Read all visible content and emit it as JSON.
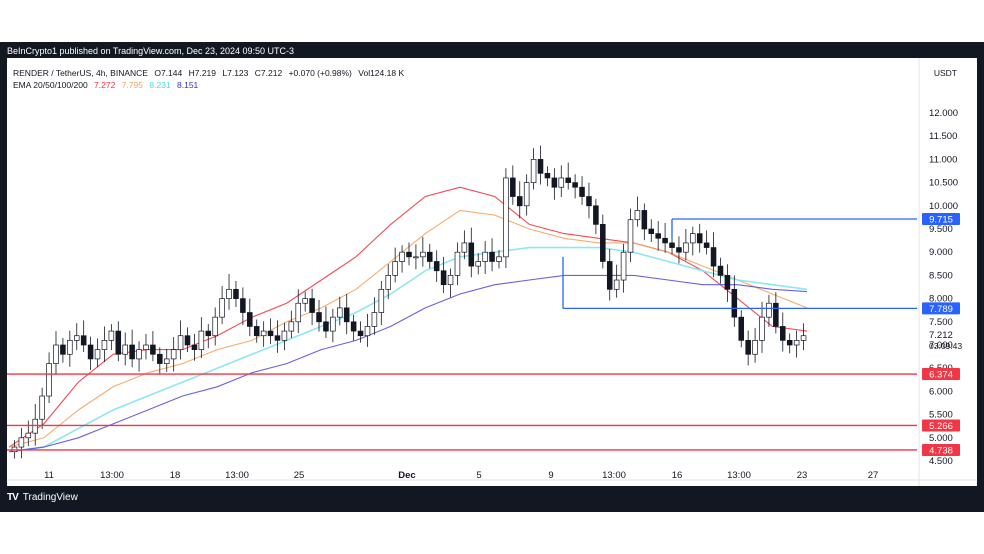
{
  "header": {
    "published": "BeInCrypto1 published on TradingView.com, Dec 23, 2024 09:50 UTC-3"
  },
  "legend": {
    "symbol": "RENDER / TetherUS, 4h, BINANCE",
    "open": "O7.144",
    "high": "H7.219",
    "low": "L7.123",
    "close": "C7.212",
    "change": "+0.070 (+0.98%)",
    "volume": "Vol124.18 K",
    "ema_label": "EMA 20/50/100/200",
    "ema": [
      "7.272",
      "7.795",
      "8.231",
      "8.151"
    ]
  },
  "currency": "USDT",
  "footer": {
    "brand": "TradingView"
  },
  "colors": {
    "ema20": "#f23645",
    "ema50": "#f7a35c",
    "ema100": "#7fe6f0",
    "ema200": "#5b4fd6",
    "support": "#f23645",
    "resistance": "#2962ff",
    "candle": "#131722"
  },
  "chart_data": {
    "type": "candlestick",
    "x_ticks": [
      "11",
      "13:00",
      "18",
      "13:00",
      "25",
      "Dec",
      "5",
      "9",
      "13:00",
      "16",
      "13:00",
      "23",
      "27"
    ],
    "y_ticks": [
      "12.000",
      "11.500",
      "11.000",
      "10.500",
      "10.000",
      "9.500",
      "9.000",
      "8.500",
      "8.000",
      "7.500",
      "7.000",
      "6.500",
      "6.000",
      "5.500",
      "5.000",
      "4.500"
    ],
    "ylim": [
      4.5,
      12.0
    ],
    "price_closes": [
      4.8,
      5.0,
      5.1,
      5.4,
      5.9,
      6.6,
      7.0,
      6.8,
      7.1,
      7.2,
      7.0,
      6.7,
      6.9,
      7.1,
      7.3,
      6.8,
      7.0,
      6.7,
      6.9,
      7.0,
      6.8,
      6.6,
      6.7,
      6.9,
      7.2,
      7.0,
      6.9,
      7.3,
      7.2,
      7.6,
      8.0,
      8.2,
      8.0,
      7.7,
      7.4,
      7.2,
      7.3,
      7.2,
      7.1,
      7.3,
      7.5,
      7.9,
      8.0,
      7.7,
      7.5,
      7.3,
      7.6,
      7.8,
      7.5,
      7.3,
      7.2,
      7.4,
      7.7,
      8.2,
      8.5,
      8.8,
      9.0,
      8.9,
      8.9,
      9.0,
      8.8,
      8.6,
      8.3,
      8.5,
      9.0,
      9.2,
      8.7,
      8.8,
      9.0,
      8.8,
      8.9,
      10.6,
      10.2,
      10.0,
      10.5,
      11.0,
      10.7,
      10.6,
      10.4,
      10.6,
      10.5,
      10.4,
      10.2,
      10.0,
      9.6,
      8.8,
      8.2,
      8.4,
      9.0,
      9.7,
      9.9,
      9.5,
      9.4,
      9.3,
      9.2,
      9.1,
      9.0,
      9.2,
      9.4,
      9.2,
      9.1,
      8.7,
      8.5,
      8.2,
      7.6,
      7.1,
      6.8,
      7.1,
      7.6,
      7.9,
      7.4,
      7.1,
      7.0,
      7.1,
      7.2
    ],
    "ema_lines": [
      {
        "name": "EMA 20",
        "values": [
          4.8,
          5.3,
          6.2,
          6.8,
          6.9,
          6.9,
          7.2,
          7.6,
          7.9,
          8.4,
          8.9,
          9.6,
          10.2,
          10.4,
          10.2,
          9.6,
          9.4,
          9.3,
          9.2,
          9.0,
          8.6,
          8.0,
          7.4,
          7.3
        ]
      },
      {
        "name": "EMA 50",
        "values": [
          4.8,
          5.0,
          5.6,
          6.1,
          6.4,
          6.6,
          6.9,
          7.1,
          7.5,
          7.8,
          8.2,
          8.8,
          9.4,
          9.9,
          9.8,
          9.5,
          9.3,
          9.2,
          9.2,
          9.0,
          8.7,
          8.4,
          8.1,
          7.8
        ]
      },
      {
        "name": "EMA 100",
        "values": [
          4.7,
          4.8,
          5.2,
          5.6,
          5.9,
          6.2,
          6.5,
          6.8,
          7.1,
          7.4,
          7.7,
          8.1,
          8.6,
          8.9,
          9.0,
          9.1,
          9.1,
          9.1,
          9.0,
          8.8,
          8.6,
          8.4,
          8.3,
          8.2
        ]
      },
      {
        "name": "EMA 200",
        "values": [
          4.7,
          4.8,
          5.0,
          5.3,
          5.6,
          5.9,
          6.1,
          6.4,
          6.6,
          6.9,
          7.1,
          7.4,
          7.8,
          8.1,
          8.3,
          8.4,
          8.5,
          8.5,
          8.5,
          8.4,
          8.3,
          8.3,
          8.2,
          8.15
        ]
      }
    ],
    "horizontal_levels": [
      {
        "label": "9.715",
        "value": 9.715,
        "kind": "resistance"
      },
      {
        "label": "7.789",
        "value": 7.789,
        "kind": "resistance"
      },
      {
        "label": "6.374",
        "value": 6.374,
        "kind": "support"
      },
      {
        "label": "5.266",
        "value": 5.266,
        "kind": "support"
      },
      {
        "label": "4.738",
        "value": 4.738,
        "kind": "support"
      }
    ],
    "last_price": {
      "label": "7.212",
      "countdown": "03:09:43",
      "value": 7.212
    }
  }
}
